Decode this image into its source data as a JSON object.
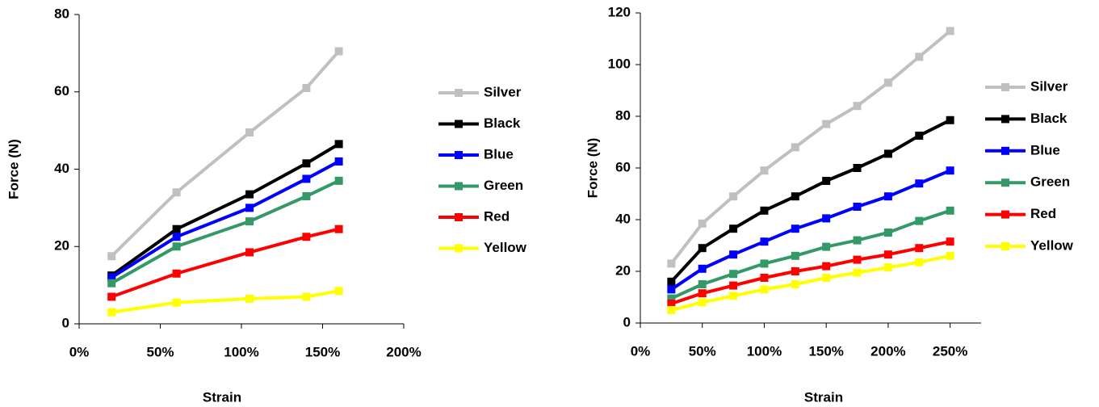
{
  "chart_data": [
    {
      "type": "line",
      "x_label": "Strain",
      "y_label": "Force (N)",
      "x": [
        20,
        60,
        105,
        140,
        160
      ],
      "xlim": [
        0,
        200
      ],
      "xticks": [
        {
          "value": 0,
          "label": "0%"
        },
        {
          "value": 50,
          "label": "50%"
        },
        {
          "value": 100,
          "label": "100%"
        },
        {
          "value": 150,
          "label": "150%"
        },
        {
          "value": 200,
          "label": "200%"
        }
      ],
      "ylim": [
        0,
        80
      ],
      "yticks": [
        0,
        20,
        40,
        60,
        80
      ],
      "legend": "right",
      "series": [
        {
          "name": "Silver",
          "color": "#c0c0c0",
          "values": [
            17.5,
            34,
            49.5,
            61,
            70.5
          ]
        },
        {
          "name": "Black",
          "color": "#000000",
          "values": [
            12.5,
            24.5,
            33.5,
            41.5,
            46.5
          ]
        },
        {
          "name": "Blue",
          "color": "#0000ff",
          "values": [
            12,
            22.5,
            30,
            37.5,
            42
          ]
        },
        {
          "name": "Green",
          "color": "#339966",
          "values": [
            10.5,
            20,
            26.5,
            33,
            37
          ]
        },
        {
          "name": "Red",
          "color": "#ff0000",
          "values": [
            7,
            13,
            18.5,
            22.5,
            24.5
          ]
        },
        {
          "name": "Yellow",
          "color": "#ffff00",
          "values": [
            3,
            5.5,
            6.5,
            7,
            8.5
          ]
        }
      ]
    },
    {
      "type": "line",
      "x_label": "Strain",
      "y_label": "Force (N)",
      "x": [
        25,
        50,
        75,
        100,
        125,
        150,
        175,
        200,
        225,
        250
      ],
      "xlim": [
        0,
        275
      ],
      "xticks": [
        {
          "value": 0,
          "label": "0%"
        },
        {
          "value": 50,
          "label": "50%"
        },
        {
          "value": 100,
          "label": "100%"
        },
        {
          "value": 150,
          "label": "150%"
        },
        {
          "value": 200,
          "label": "200%"
        },
        {
          "value": 250,
          "label": "250%"
        }
      ],
      "ylim": [
        0,
        120
      ],
      "yticks": [
        0,
        20,
        40,
        60,
        80,
        100,
        120
      ],
      "legend": "right",
      "series": [
        {
          "name": "Silver",
          "color": "#c0c0c0",
          "values": [
            23,
            38.5,
            49,
            59,
            68,
            77,
            84,
            93,
            103,
            113
          ]
        },
        {
          "name": "Black",
          "color": "#000000",
          "values": [
            16,
            29,
            36.5,
            43.5,
            49,
            55,
            60,
            65.5,
            72.5,
            78.5
          ]
        },
        {
          "name": "Blue",
          "color": "#0000ff",
          "values": [
            13,
            21,
            26.5,
            31.5,
            36.5,
            40.5,
            45,
            49,
            54,
            59
          ]
        },
        {
          "name": "Green",
          "color": "#339966",
          "values": [
            9.5,
            15,
            19,
            23,
            26,
            29.5,
            32,
            35,
            39.5,
            43.5
          ]
        },
        {
          "name": "Red",
          "color": "#ff0000",
          "values": [
            7.5,
            11.5,
            14.5,
            17.5,
            20,
            22,
            24.5,
            26.5,
            29,
            31.5
          ]
        },
        {
          "name": "Yellow",
          "color": "#ffff00",
          "values": [
            5,
            8,
            10.5,
            13,
            15,
            17.5,
            19.5,
            21.5,
            23.5,
            26
          ]
        }
      ]
    }
  ]
}
